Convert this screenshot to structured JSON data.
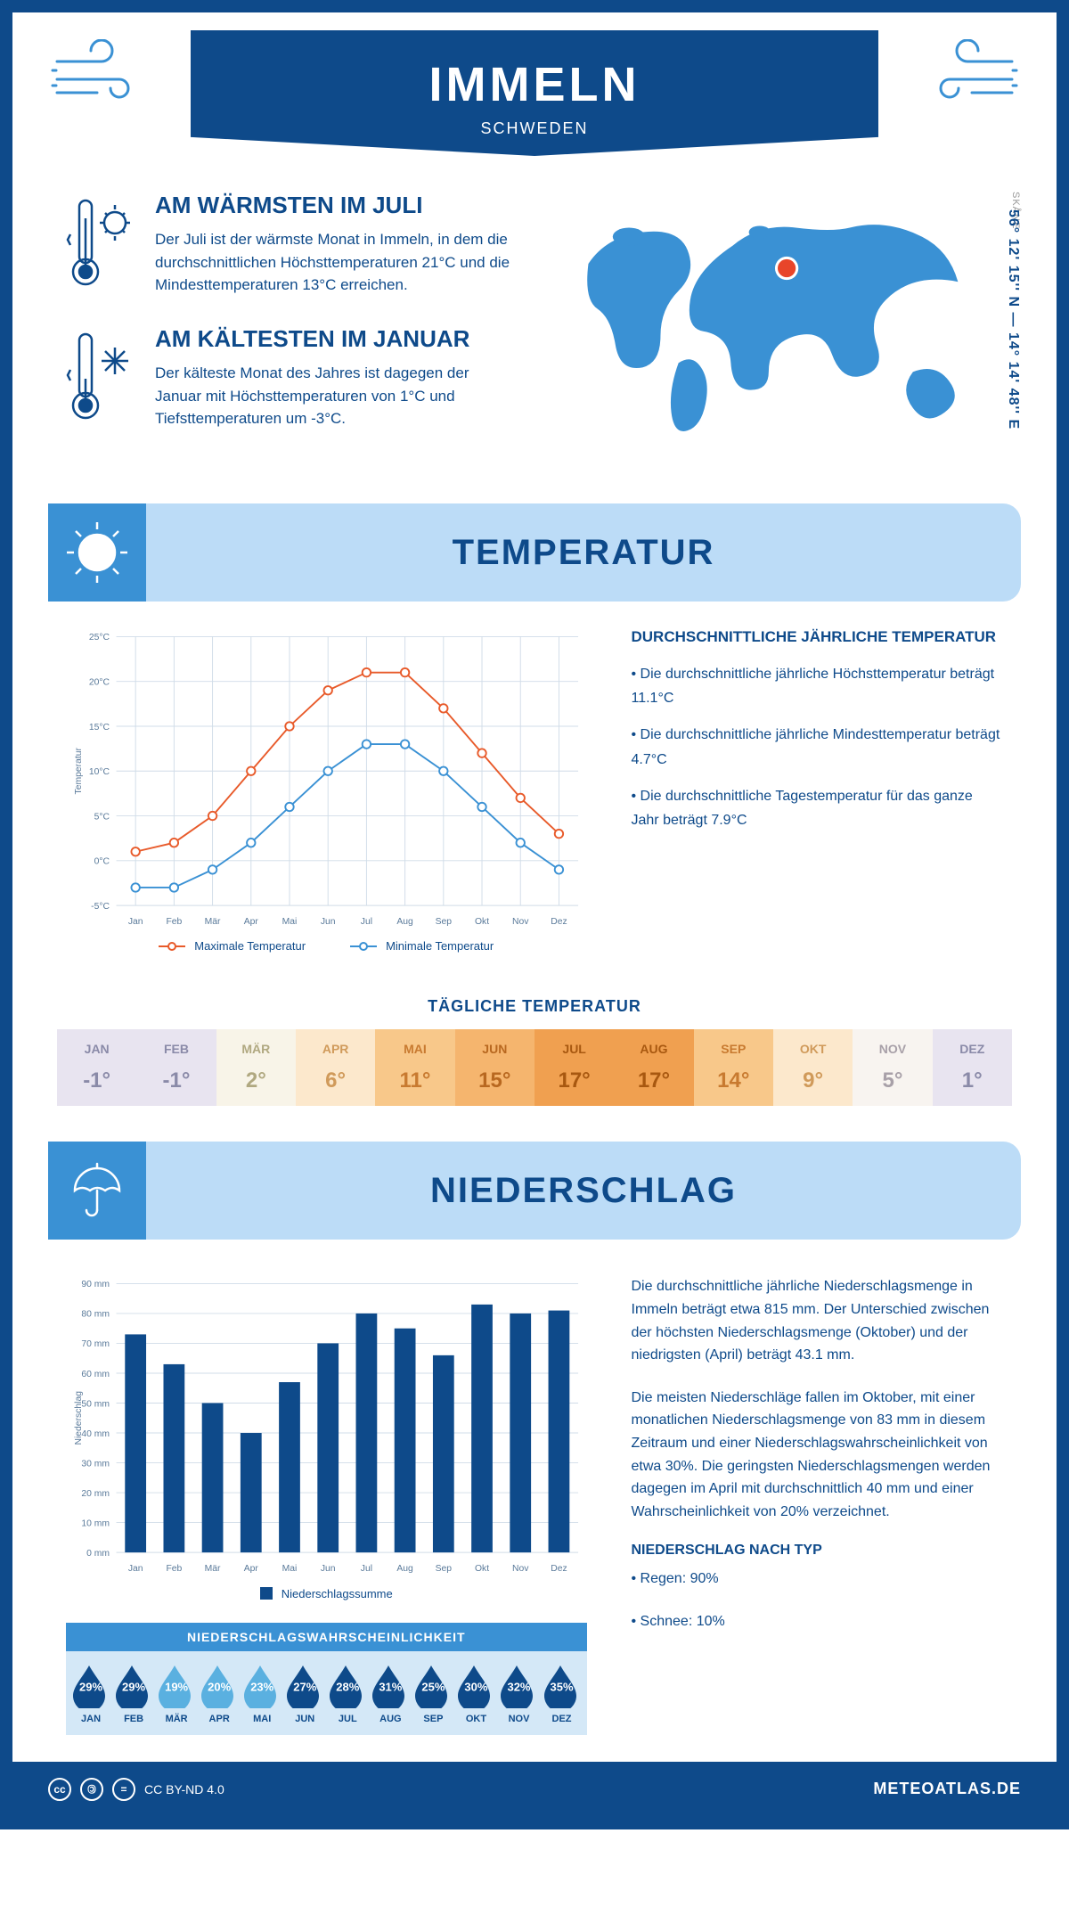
{
  "header": {
    "city": "IMMELN",
    "country": "SCHWEDEN"
  },
  "location": {
    "coords": "56° 12' 15'' N — 14° 14' 48'' E",
    "region": "SKÅNE"
  },
  "facts": {
    "warm": {
      "title": "AM WÄRMSTEN IM JULI",
      "text": "Der Juli ist der wärmste Monat in Immeln, in dem die durchschnittlichen Höchsttemperaturen 21°C und die Mindesttemperaturen 13°C erreichen."
    },
    "cold": {
      "title": "AM KÄLTESTEN IM JANUAR",
      "text": "Der kälteste Monat des Jahres ist dagegen der Januar mit Höchsttemperaturen von 1°C und Tiefsttemperaturen um -3°C."
    }
  },
  "sections": {
    "temp": "TEMPERATUR",
    "precip": "NIEDERSCHLAG"
  },
  "temp_chart": {
    "type": "line",
    "months": [
      "Jan",
      "Feb",
      "Mär",
      "Apr",
      "Mai",
      "Jun",
      "Jul",
      "Aug",
      "Sep",
      "Okt",
      "Nov",
      "Dez"
    ],
    "max_series": {
      "label": "Maximale Temperatur",
      "color": "#e85a2a",
      "values": [
        1,
        2,
        5,
        10,
        15,
        19,
        21,
        21,
        17,
        12,
        7,
        3
      ]
    },
    "min_series": {
      "label": "Minimale Temperatur",
      "color": "#3a91d4",
      "values": [
        -3,
        -3,
        -1,
        2,
        6,
        10,
        13,
        13,
        10,
        6,
        2,
        -1
      ]
    },
    "ylim": [
      -5,
      25
    ],
    "ytick_step": 5,
    "y_label": "Temperatur",
    "grid_color": "#d0dce8",
    "background_color": "#ffffff",
    "line_width": 2,
    "marker": "circle",
    "marker_size": 5
  },
  "temp_info": {
    "title": "DURCHSCHNITTLICHE JÄHRLICHE TEMPERATUR",
    "b1": "• Die durchschnittliche jährliche Höchsttemperatur beträgt 11.1°C",
    "b2": "• Die durchschnittliche jährliche Mindesttemperatur beträgt 4.7°C",
    "b3": "• Die durchschnittliche Tagestemperatur für das ganze Jahr beträgt 7.9°C"
  },
  "daily_temp": {
    "title": "TÄGLICHE TEMPERATUR",
    "months": [
      "JAN",
      "FEB",
      "MÄR",
      "APR",
      "MAI",
      "JUN",
      "JUL",
      "AUG",
      "SEP",
      "OKT",
      "NOV",
      "DEZ"
    ],
    "values": [
      "-1°",
      "-1°",
      "2°",
      "6°",
      "11°",
      "15°",
      "17°",
      "17°",
      "14°",
      "9°",
      "5°",
      "1°"
    ],
    "bg_colors": [
      "#e8e4f0",
      "#e8e4f0",
      "#f8f4e8",
      "#fce8cc",
      "#f8c88a",
      "#f5b56e",
      "#f0a050",
      "#f0a050",
      "#f8c88a",
      "#fce8cc",
      "#f8f4f0",
      "#e8e4f0"
    ],
    "text_colors": [
      "#8a8aa8",
      "#8a8aa8",
      "#b0a880",
      "#d09a5a",
      "#c87a30",
      "#b86820",
      "#a85810",
      "#a85810",
      "#c87a30",
      "#d09a5a",
      "#a8a0a8",
      "#8a8aa8"
    ]
  },
  "precip_chart": {
    "type": "bar",
    "months": [
      "Jan",
      "Feb",
      "Mär",
      "Apr",
      "Mai",
      "Jun",
      "Jul",
      "Aug",
      "Sep",
      "Okt",
      "Nov",
      "Dez"
    ],
    "values": [
      73,
      63,
      50,
      40,
      57,
      70,
      80,
      75,
      66,
      83,
      80,
      81
    ],
    "bar_color": "#0e4a8a",
    "bar_width": 0.55,
    "ylim": [
      0,
      90
    ],
    "ytick_step": 10,
    "y_label": "Niederschlag",
    "grid_color": "#d0dce8",
    "legend_label": "Niederschlagssumme"
  },
  "precip_text": {
    "p1": "Die durchschnittliche jährliche Niederschlagsmenge in Immeln beträgt etwa 815 mm. Der Unterschied zwischen der höchsten Niederschlagsmenge (Oktober) und der niedrigsten (April) beträgt 43.1 mm.",
    "p2": "Die meisten Niederschläge fallen im Oktober, mit einer monatlichen Niederschlagsmenge von 83 mm in diesem Zeitraum und einer Niederschlagswahrscheinlichkeit von etwa 30%. Die geringsten Niederschlagsmengen werden dagegen im April mit durchschnittlich 40 mm und einer Wahrscheinlichkeit von 20% verzeichnet.",
    "type_title": "NIEDERSCHLAG NACH TYP",
    "rain": "• Regen: 90%",
    "snow": "• Schnee: 10%"
  },
  "precip_prob": {
    "title": "NIEDERSCHLAGSWAHRSCHEINLICHKEIT",
    "months": [
      "JAN",
      "FEB",
      "MÄR",
      "APR",
      "MAI",
      "JUN",
      "JUL",
      "AUG",
      "SEP",
      "OKT",
      "NOV",
      "DEZ"
    ],
    "values": [
      "29%",
      "29%",
      "19%",
      "20%",
      "23%",
      "27%",
      "28%",
      "31%",
      "25%",
      "30%",
      "32%",
      "35%"
    ],
    "colors": [
      "#0e4a8a",
      "#0e4a8a",
      "#5ab0e0",
      "#5ab0e0",
      "#5ab0e0",
      "#0e4a8a",
      "#0e4a8a",
      "#0e4a8a",
      "#0e4a8a",
      "#0e4a8a",
      "#0e4a8a",
      "#0e4a8a"
    ]
  },
  "footer": {
    "license": "CC BY-ND 4.0",
    "site": "METEOATLAS.DE"
  }
}
